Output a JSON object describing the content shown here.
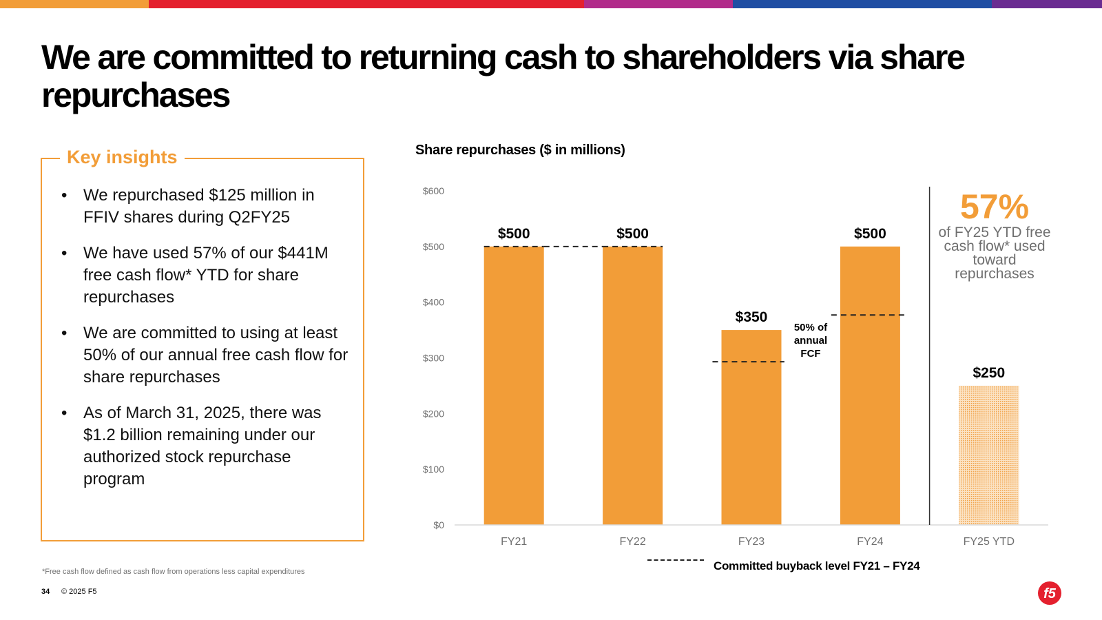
{
  "colors": {
    "accent": "#F29D38",
    "bar": "#F29D38",
    "bar_ytd": "#F8D5A8",
    "top_bar": [
      "#F29D38",
      "#E4202E",
      "#B12B8A",
      "#1F4EA3",
      "#6A2C91"
    ]
  },
  "title": "We are committed to returning cash to shareholders via share repurchases",
  "insights": {
    "title": "Key insights",
    "items": [
      "We repurchased $125 million in FFIV shares during Q2FY25",
      "We have used 57% of our $441M free cash flow* YTD for share repurchases",
      "We are committed to using at least 50% of our annual free cash flow for share repurchases",
      "As of March 31, 2025, there was $1.2 billion remaining under our authorized stock repurchase program"
    ]
  },
  "chart_data": {
    "type": "bar",
    "title": "Share repurchases ($ in millions)",
    "categories": [
      "FY21",
      "FY22",
      "FY23",
      "FY24",
      "FY25 YTD"
    ],
    "values": [
      500,
      500,
      350,
      500,
      250
    ],
    "data_labels": [
      "$500",
      "$500",
      "$350",
      "$500",
      "$250"
    ],
    "ylim": [
      0,
      600
    ],
    "yticks": [
      0,
      100,
      200,
      300,
      400,
      500,
      600
    ],
    "ytick_labels": [
      "$0",
      "$100",
      "$200",
      "$300",
      "$400",
      "$500",
      "$600"
    ],
    "committed_buyback_level": [
      500,
      500,
      293,
      377
    ],
    "legend": "Committed buyback level FY21 – FY24",
    "annotation": "50% of annual FCF",
    "grid": false
  },
  "callout": {
    "percent": "57%",
    "text": "of FY25 YTD free cash flow* used toward repurchases"
  },
  "footnote": "*Free cash flow defined as cash flow from operations less capital expenditures",
  "page_number": "34",
  "copyright": "© 2025 F5",
  "logo": {
    "text": "f5",
    "icon": "f5-logo-icon"
  }
}
